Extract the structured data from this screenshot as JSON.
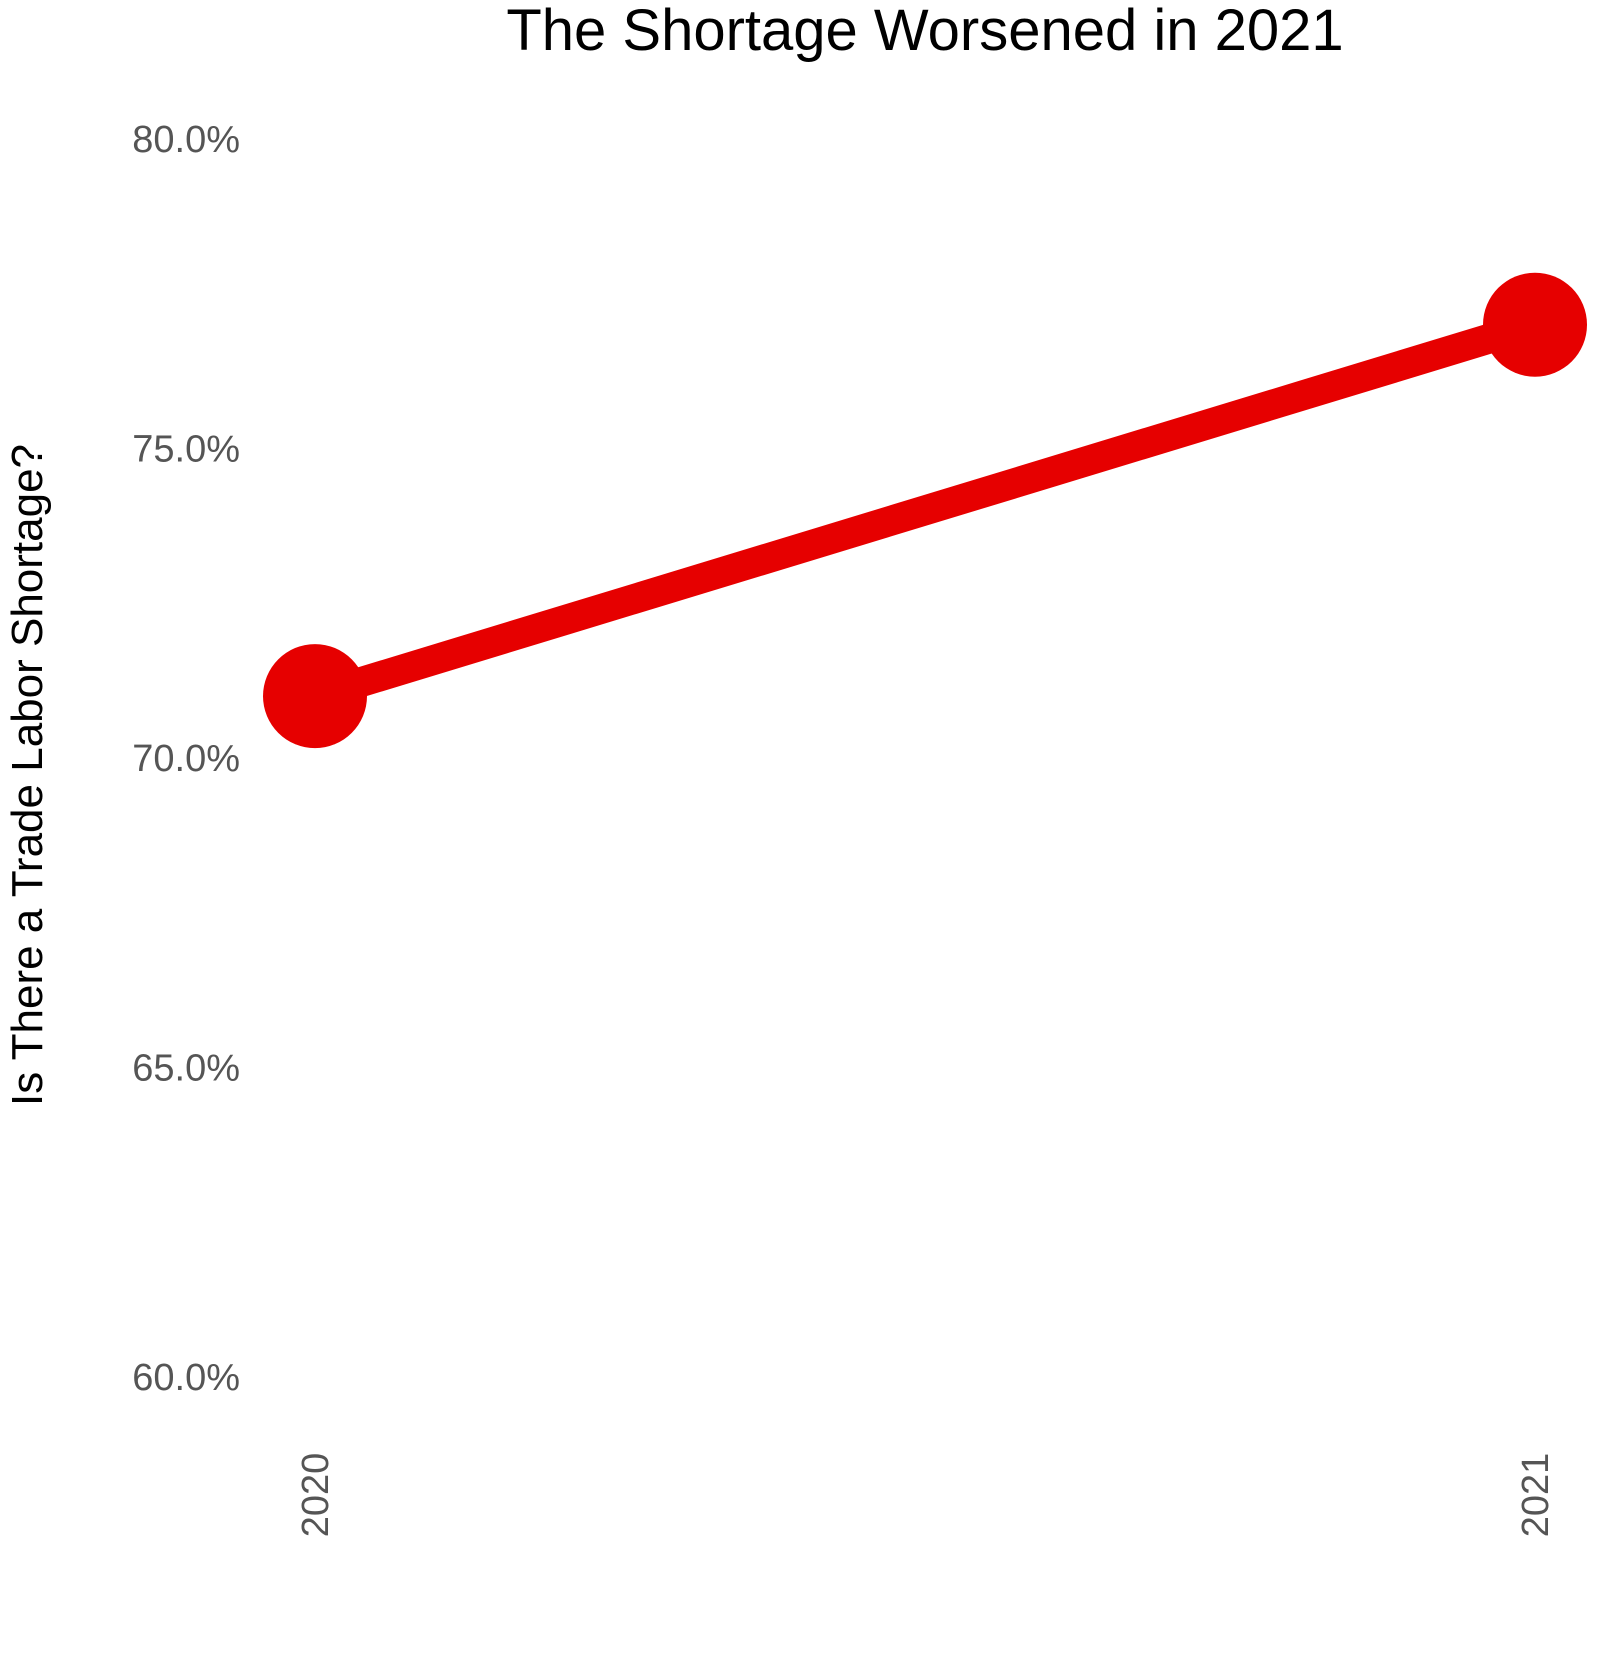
{
  "chart_data": {
    "type": "line",
    "title": "The Shortage Worsened in 2021",
    "xlabel": "",
    "ylabel": "Is There a Trade Labor Shortage?",
    "categories": [
      "2020",
      "2021"
    ],
    "series": [
      {
        "values": [
          71.0,
          77.0
        ]
      }
    ],
    "yticks": [
      "60.0%",
      "65.0%",
      "70.0%",
      "75.0%",
      "80.0%"
    ],
    "ytick_values": [
      60,
      65,
      70,
      75,
      80
    ],
    "ylim": [
      60,
      80
    ],
    "grid": false,
    "legend": "none",
    "colors": {
      "series": "#e60000",
      "ticks": "#555555",
      "text": "#000000"
    }
  }
}
